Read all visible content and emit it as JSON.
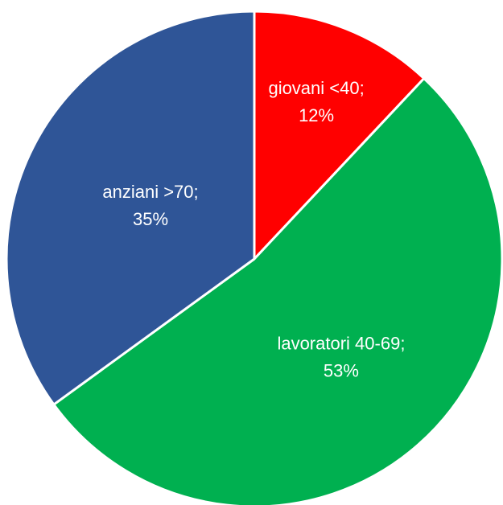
{
  "chart_data": {
    "type": "pie",
    "categories": [
      "giovani <40;",
      "lavoratori 40-69;",
      "anziani >70;"
    ],
    "values": [
      12,
      53,
      35
    ],
    "value_labels": [
      "12%",
      "53%",
      "35%"
    ],
    "colors": [
      "#ff0000",
      "#00b050",
      "#2f5597"
    ]
  }
}
